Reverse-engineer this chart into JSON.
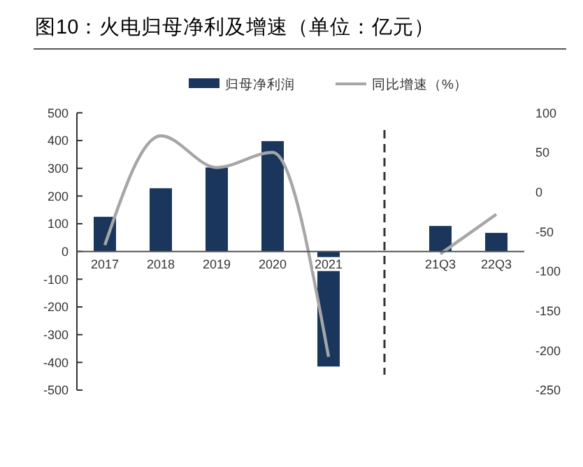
{
  "chart_data": {
    "type": "bar",
    "title": "图10：火电归母净利及增速（单位：亿元）",
    "categories": [
      "2017",
      "2018",
      "2019",
      "2020",
      "2021",
      null,
      "21Q3",
      "22Q3"
    ],
    "series": [
      {
        "name": "归母净利润",
        "color": "#1b365d",
        "values": [
          125,
          228,
          303,
          398,
          -415,
          null,
          92,
          67
        ]
      },
      {
        "name": "同比增速（%）",
        "type": "line",
        "axis": "y2",
        "color": "#a6a6a6",
        "values": [
          -67,
          71,
          31,
          50,
          -208,
          null,
          -78,
          -28
        ]
      }
    ],
    "ylim": [
      -500,
      500
    ],
    "yticks": [
      -500,
      -400,
      -300,
      -200,
      -100,
      0,
      100,
      200,
      300,
      400,
      500
    ],
    "y2lim": [
      -250,
      100
    ],
    "y2ticks": [
      -250,
      -200,
      -150,
      -100,
      -50,
      0,
      50,
      100
    ],
    "ref_lines": [
      {
        "axis": "x",
        "value": null,
        "line_style": "dashed",
        "color": "#333333"
      }
    ],
    "legend": "top",
    "marker": "none"
  }
}
